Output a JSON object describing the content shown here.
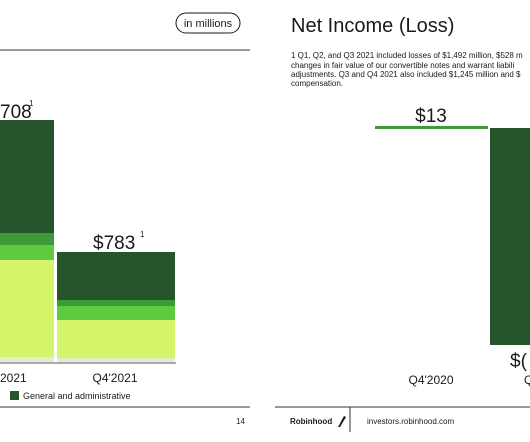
{
  "left_slide": {
    "unit_badge": "in millions",
    "bars": [
      {
        "value_label": "708",
        "footnote_mark": "1",
        "category": "2021"
      },
      {
        "value_label": "$783",
        "footnote_mark": "1",
        "category": "Q4'2021"
      }
    ],
    "legend": [
      "General and administrative"
    ],
    "page_number": "14"
  },
  "right_slide": {
    "title": "Net Income (Loss)",
    "footnote": [
      "1 Q1, Q2, and Q3 2021 included losses of $1,492 million, $528 m",
      "changes in fair value of our convertible notes and warrant liabili",
      "adjustments. Q3 and Q4 2021 also included $1,245 million and $",
      "compensation."
    ],
    "bars": [
      {
        "value_label": "$13",
        "category": "Q4'2020"
      },
      {
        "value_label": "$(",
        "category": "Q"
      }
    ],
    "footer": {
      "brand": "Robinhood",
      "url": "investors.robinhood.com"
    }
  }
}
